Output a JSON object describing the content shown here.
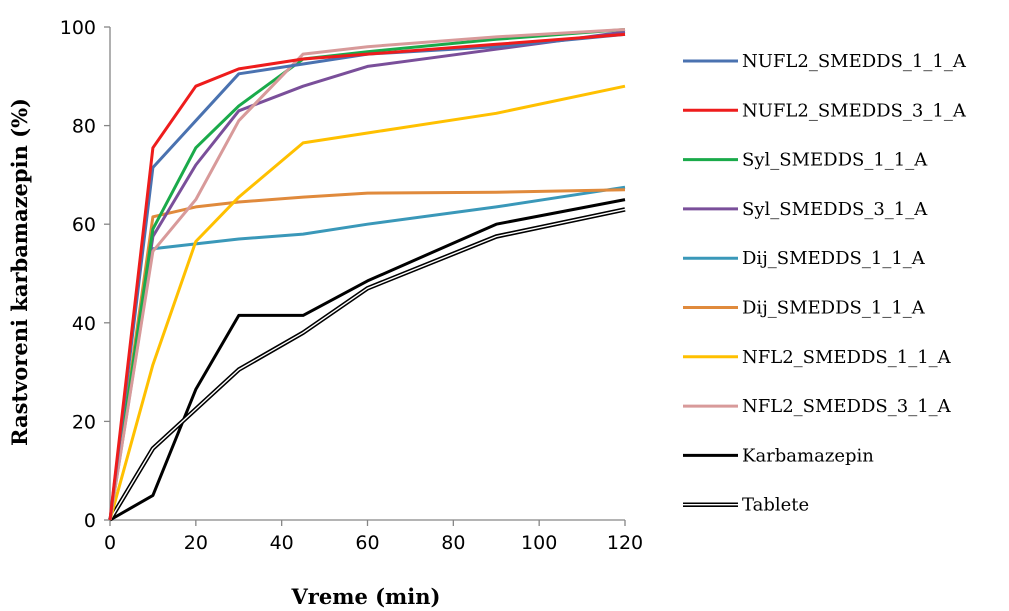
{
  "chart_data": {
    "type": "line",
    "xlabel": "Vreme (min)",
    "ylabel": "Rastvoreni karbamazepin (%)",
    "xlim": [
      0,
      120
    ],
    "ylim": [
      0,
      100
    ],
    "x_ticks": [
      0,
      20,
      40,
      60,
      80,
      100,
      120
    ],
    "y_ticks": [
      0,
      20,
      40,
      60,
      80,
      100
    ],
    "grid": false,
    "legend_position": "right",
    "series": [
      {
        "name": "NUFL2_SMEDDS_1_1_A",
        "color": "#4a72b0",
        "style": "solid",
        "x": [
          0,
          10,
          20,
          30,
          45,
          60,
          90,
          120
        ],
        "y": [
          0,
          71.5,
          81,
          90.5,
          92.5,
          94.5,
          96,
          98.5
        ]
      },
      {
        "name": "NUFL2_SMEDDS_3_1_A",
        "color": "#ee1c1c",
        "style": "solid",
        "x": [
          0,
          10,
          20,
          30,
          45,
          60,
          90,
          120
        ],
        "y": [
          0,
          75.5,
          88,
          91.5,
          93.5,
          94.5,
          96.5,
          98.5
        ]
      },
      {
        "name": "Syl_SMEDDS_1_1_A",
        "color": "#1aaa4a",
        "style": "solid",
        "x": [
          0,
          10,
          20,
          30,
          45,
          60,
          90,
          120
        ],
        "y": [
          0,
          59,
          75.5,
          84,
          93.5,
          95,
          97.5,
          99.5
        ]
      },
      {
        "name": "Syl_SMEDDS_3_1_A",
        "color": "#7a4f9a",
        "style": "solid",
        "x": [
          0,
          10,
          20,
          30,
          45,
          60,
          90,
          120
        ],
        "y": [
          0,
          57.5,
          72,
          83,
          88,
          92,
          95.5,
          99
        ]
      },
      {
        "name": "Dij_SMEDDS_1_1_A",
        "color": "#3a98b9",
        "style": "solid",
        "x": [
          0,
          10,
          20,
          30,
          45,
          60,
          90,
          120
        ],
        "y": [
          0,
          55,
          56,
          57,
          58,
          60,
          63.5,
          67.5
        ]
      },
      {
        "name": "Dij_SMEDDS_1_1_A",
        "color": "#e08a3c",
        "style": "solid",
        "x": [
          0,
          10,
          20,
          30,
          45,
          60,
          90,
          120
        ],
        "y": [
          0,
          61.5,
          63.5,
          64.5,
          65.5,
          66.3,
          66.5,
          67
        ]
      },
      {
        "name": "NFL2_SMEDDS_1_1_A",
        "color": "#ffc000",
        "style": "solid",
        "x": [
          0,
          10,
          20,
          30,
          45,
          60,
          90,
          120
        ],
        "y": [
          0,
          31.5,
          56.5,
          65.5,
          76.5,
          78.5,
          82.5,
          88
        ]
      },
      {
        "name": "NFL2_SMEDDS_3_1_A",
        "color": "#d89a9a",
        "style": "solid",
        "x": [
          0,
          10,
          20,
          30,
          45,
          60,
          90,
          120
        ],
        "y": [
          0,
          54.5,
          65,
          81,
          94.5,
          96,
          98,
          99.5
        ]
      },
      {
        "name": "Karbamazepin",
        "color": "#000000",
        "style": "solid",
        "x": [
          0,
          10,
          20,
          30,
          45,
          60,
          90,
          120
        ],
        "y": [
          0,
          5,
          26.5,
          41.5,
          41.5,
          48.5,
          60,
          65
        ]
      },
      {
        "name": "Tablete",
        "color": "#000000",
        "style": "double",
        "x": [
          0,
          10,
          20,
          30,
          45,
          60,
          90,
          120
        ],
        "y": [
          0,
          14.5,
          22.5,
          30.5,
          38,
          47,
          57.5,
          63
        ]
      }
    ]
  }
}
